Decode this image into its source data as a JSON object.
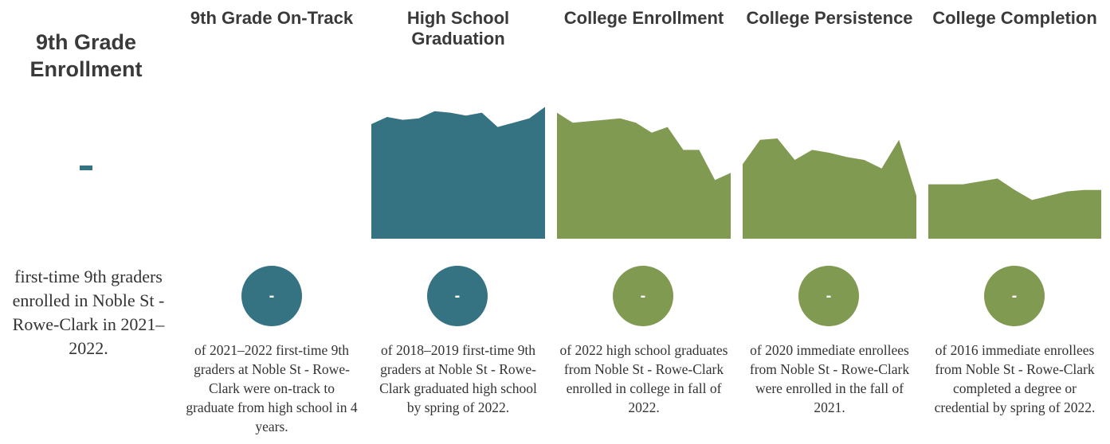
{
  "colors": {
    "teal": "#357383",
    "green": "#819a52"
  },
  "enrollment": {
    "title": "9th Grade Enrollment",
    "value": "-",
    "description": "first-time 9th graders enrolled in Noble St - Rowe-Clark in 2021–2022."
  },
  "metrics": [
    {
      "title": "9th Grade On-Track",
      "value": "-",
      "color": "#357383",
      "description": "of 2021–2022 first-time 9th graders at Noble St - Rowe-Clark were on-track to graduate from high school in 4 years."
    },
    {
      "title": "High School Graduation",
      "value": "-",
      "color": "#357383",
      "description": "of 2018–2019 first-time 9th graders at Noble St - Rowe-Clark graduated high school by spring of 2022."
    },
    {
      "title": "College Enrollment",
      "value": "-",
      "color": "#819a52",
      "description": "of 2022 high school graduates from Noble St - Rowe-Clark enrolled in college in fall of 2022."
    },
    {
      "title": "College Persistence",
      "value": "-",
      "color": "#819a52",
      "description": "of 2020 immediate enrollees from Noble St - Rowe-Clark were enrolled in the fall of 2021."
    },
    {
      "title": "College Completion",
      "value": "-",
      "color": "#819a52",
      "description": "of 2016 immediate enrollees from Noble St - Rowe-Clark completed a degree or credential by spring of 2022."
    }
  ],
  "chart_data": [
    {
      "type": "area",
      "metric": "High School Graduation",
      "values": [
        0.8,
        0.85,
        0.83,
        0.84,
        0.89,
        0.88,
        0.86,
        0.88,
        0.78,
        0.81,
        0.84,
        0.92
      ],
      "ylim": [
        0,
        1
      ]
    },
    {
      "type": "area",
      "metric": "College Enrollment",
      "values": [
        0.88,
        0.81,
        0.82,
        0.83,
        0.84,
        0.81,
        0.74,
        0.78,
        0.62,
        0.62,
        0.41,
        0.46
      ],
      "ylim": [
        0,
        1
      ]
    },
    {
      "type": "area",
      "metric": "College Persistence",
      "values": [
        0.52,
        0.69,
        0.7,
        0.55,
        0.62,
        0.6,
        0.57,
        0.55,
        0.49,
        0.69,
        0.3
      ],
      "ylim": [
        0,
        1
      ]
    },
    {
      "type": "area",
      "metric": "College Completion",
      "values": [
        0.38,
        0.38,
        0.38,
        0.4,
        0.42,
        0.34,
        0.27,
        0.3,
        0.33,
        0.34,
        0.34
      ],
      "ylim": [
        0,
        1
      ]
    }
  ]
}
